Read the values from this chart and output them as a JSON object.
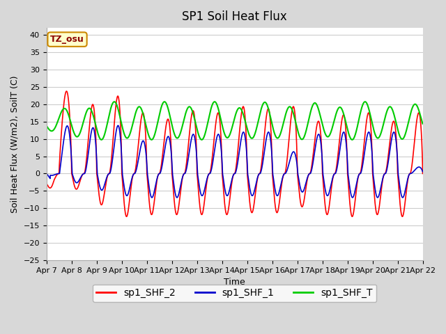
{
  "title": "SP1 Soil Heat Flux",
  "ylabel": "Soil Heat Flux (W/m2), SoilT (C)",
  "xlabel": "Time",
  "ylim": [
    -25,
    42
  ],
  "yticks": [
    -25,
    -20,
    -15,
    -10,
    -5,
    0,
    5,
    10,
    15,
    20,
    25,
    30,
    35,
    40
  ],
  "fig_bg_color": "#d8d8d8",
  "plot_bg_color": "#ffffff",
  "grid_color": "#cccccc",
  "line_colors": {
    "sp1_SHF_2": "#ff0000",
    "sp1_SHF_1": "#0000cc",
    "sp1_SHF_T": "#00cc00"
  },
  "legend_label": "TZ_osu",
  "legend_box_color": "#ffffcc",
  "legend_box_edge": "#cc8800",
  "tick_labels": [
    "Apr 7",
    "Apr 8",
    "Apr 9",
    "Apr 10",
    "Apr 11",
    "Apr 12",
    "Apr 13",
    "Apr 14",
    "Apr 15",
    "Apr 16",
    "Apr 17",
    "Apr 18",
    "Apr 19",
    "Apr 20",
    "Apr 21",
    "Apr 22"
  ],
  "title_fontsize": 12,
  "axis_label_fontsize": 9,
  "tick_fontsize": 8,
  "legend_fontsize": 10
}
